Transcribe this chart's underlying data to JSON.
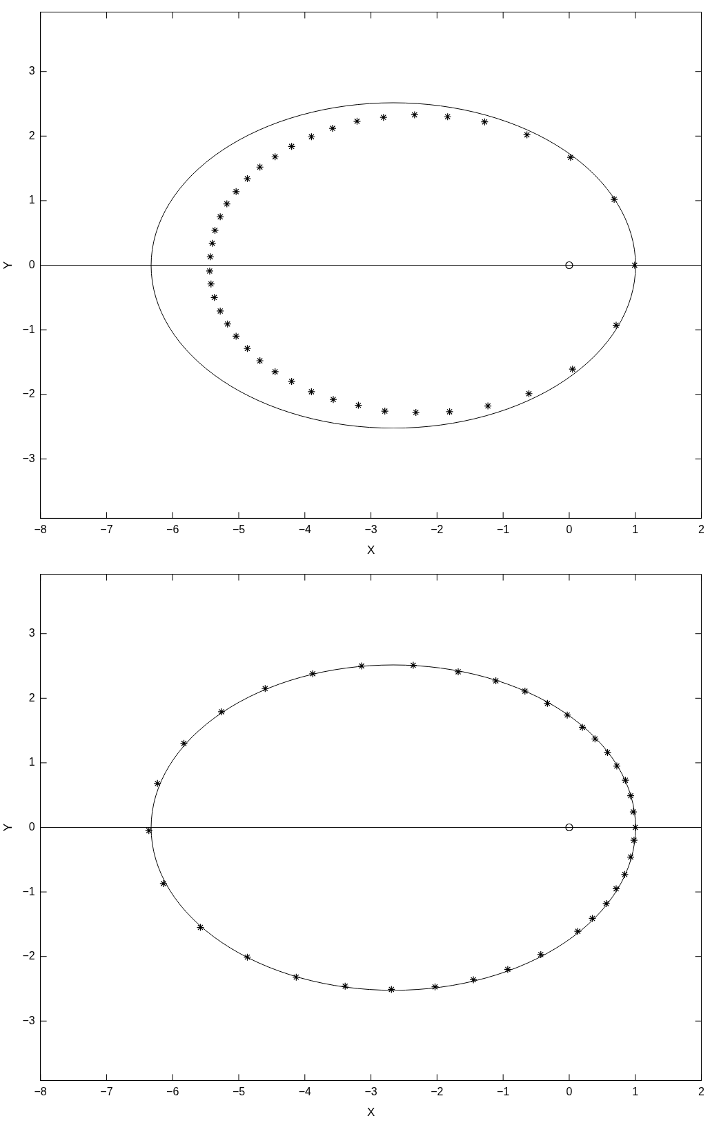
{
  "chart_data": [
    {
      "type": "scatter",
      "xlabel": "X",
      "ylabel": "Y",
      "xlim": [
        -8,
        2
      ],
      "ylim": [
        -3.92,
        3.92
      ],
      "xticks": [
        {
          "value": -8,
          "label": "−8"
        },
        {
          "value": -7,
          "label": "−7"
        },
        {
          "value": -6,
          "label": "−6"
        },
        {
          "value": -5,
          "label": "−5"
        },
        {
          "value": -4,
          "label": "−4"
        },
        {
          "value": -3,
          "label": "−3"
        },
        {
          "value": -2,
          "label": "−2"
        },
        {
          "value": -1,
          "label": "−1"
        },
        0,
        1,
        2
      ],
      "yticks": [
        {
          "value": -3,
          "label": "−3"
        },
        {
          "value": -2,
          "label": "−2"
        },
        {
          "value": -1,
          "label": "−1"
        },
        0,
        1,
        2,
        3
      ],
      "grid": false,
      "legend": false,
      "ref_lines": [
        {
          "axis": "y",
          "value": 0,
          "color": "#000000"
        }
      ],
      "series": [
        {
          "type": "scatter",
          "color": "#000000",
          "marker": "cross",
          "x": [
            0.99,
            0.68,
            0.02,
            -0.64,
            -1.28,
            -1.84,
            -2.34,
            -2.81,
            -3.21,
            -3.58,
            -3.9,
            -4.2,
            -4.45,
            -4.68,
            -4.87,
            -5.04,
            -5.18,
            -5.28,
            -5.36,
            -5.4,
            -5.43,
            -5.44,
            -5.42,
            -5.37,
            -5.28,
            -5.17,
            -5.04,
            -4.87,
            -4.68,
            -4.45,
            -4.2,
            -3.9,
            -3.57,
            -3.19,
            -2.79,
            -2.32,
            -1.81,
            -1.23,
            -0.61,
            0.05,
            0.71
          ],
          "values": [
            0,
            1.02,
            1.67,
            2.02,
            2.22,
            2.3,
            2.33,
            2.29,
            2.23,
            2.12,
            1.99,
            1.84,
            1.68,
            1.52,
            1.34,
            1.14,
            0.95,
            0.75,
            0.54,
            0.34,
            0.13,
            -0.09,
            -0.29,
            -0.5,
            -0.71,
            -0.91,
            -1.1,
            -1.29,
            -1.48,
            -1.65,
            -1.8,
            -1.96,
            -2.08,
            -2.17,
            -2.26,
            -2.28,
            -2.27,
            -2.18,
            -1.99,
            -1.61,
            -0.93
          ]
        },
        {
          "type": "scatter",
          "color": "#000000",
          "marker": "circle",
          "x": [
            0
          ],
          "values": [
            0
          ]
        }
      ]
    },
    {
      "type": "scatter",
      "xlabel": "X",
      "ylabel": "Y",
      "xlim": [
        -8,
        2
      ],
      "ylim": [
        -3.92,
        3.92
      ],
      "xticks": [
        {
          "value": -8,
          "label": "−8"
        },
        {
          "value": -7,
          "label": "−7"
        },
        {
          "value": -6,
          "label": "−6"
        },
        {
          "value": -5,
          "label": "−5"
        },
        {
          "value": -4,
          "label": "−4"
        },
        {
          "value": -3,
          "label": "−3"
        },
        {
          "value": -2,
          "label": "−2"
        },
        {
          "value": -1,
          "label": "−1"
        },
        0,
        1,
        2
      ],
      "yticks": [
        {
          "value": -3,
          "label": "−3"
        },
        {
          "value": -2,
          "label": "−2"
        },
        {
          "value": -1,
          "label": "−1"
        },
        0,
        1,
        2,
        3
      ],
      "grid": false,
      "legend": false,
      "ref_lines": [
        {
          "axis": "y",
          "value": 0,
          "color": "#000000"
        }
      ],
      "series": [
        {
          "type": "scatter",
          "color": "#000000",
          "marker": "cross",
          "x": [
            1.0,
            0.97,
            0.93,
            0.85,
            0.72,
            0.58,
            0.39,
            0.2,
            -0.03,
            -0.33,
            -0.67,
            -1.11,
            -1.68,
            -2.36,
            -3.14,
            -3.88,
            -4.6,
            -5.26,
            -5.83,
            -6.23,
            -6.36,
            -6.14,
            -5.58,
            -4.87,
            -4.13,
            -3.39,
            -2.69,
            -2.03,
            -1.45,
            -0.93,
            -0.43,
            0.13,
            0.35,
            0.56,
            0.71,
            0.84,
            0.93,
            0.98
          ],
          "values": [
            0,
            0.24,
            0.49,
            0.73,
            0.95,
            1.16,
            1.37,
            1.55,
            1.74,
            1.92,
            2.11,
            2.27,
            2.41,
            2.51,
            2.5,
            2.38,
            2.15,
            1.79,
            1.3,
            0.68,
            -0.05,
            -0.87,
            -1.55,
            -2.01,
            -2.32,
            -2.46,
            -2.51,
            -2.47,
            -2.36,
            -2.2,
            -1.97,
            -1.61,
            -1.41,
            -1.18,
            -0.95,
            -0.73,
            -0.46,
            -0.2
          ]
        },
        {
          "type": "scatter",
          "color": "#000000",
          "marker": "circle",
          "x": [
            0
          ],
          "values": [
            0
          ]
        }
      ]
    }
  ]
}
